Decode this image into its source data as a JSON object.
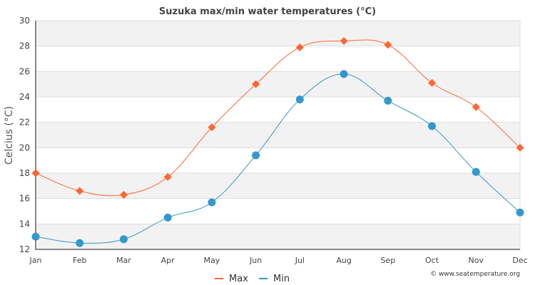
{
  "chart_data": {
    "type": "line",
    "title": "Suzuka max/min water temperatures (°C)",
    "xlabel": "",
    "ylabel": "Celcius (°C)",
    "categories": [
      "Jan",
      "Feb",
      "Mar",
      "Apr",
      "May",
      "Jun",
      "Jul",
      "Aug",
      "Sep",
      "Oct",
      "Nov",
      "Dec"
    ],
    "yticks": [
      12,
      14,
      16,
      18,
      20,
      22,
      24,
      26,
      28,
      30
    ],
    "ylim": [
      12,
      30
    ],
    "grid": true,
    "legend_position": "bottom-center",
    "series": [
      {
        "name": "Max",
        "color": "#ff6633",
        "marker": "diamond",
        "values": [
          18.0,
          16.6,
          16.3,
          17.7,
          21.6,
          25.0,
          27.9,
          28.4,
          28.1,
          25.1,
          23.2,
          20.0
        ]
      },
      {
        "name": "Min",
        "color": "#3399cc",
        "marker": "circle",
        "values": [
          13.0,
          12.5,
          12.8,
          14.5,
          15.7,
          19.4,
          23.8,
          25.8,
          23.7,
          21.7,
          18.1,
          14.9
        ]
      }
    ],
    "credit": "© www.seatemperature.org"
  }
}
